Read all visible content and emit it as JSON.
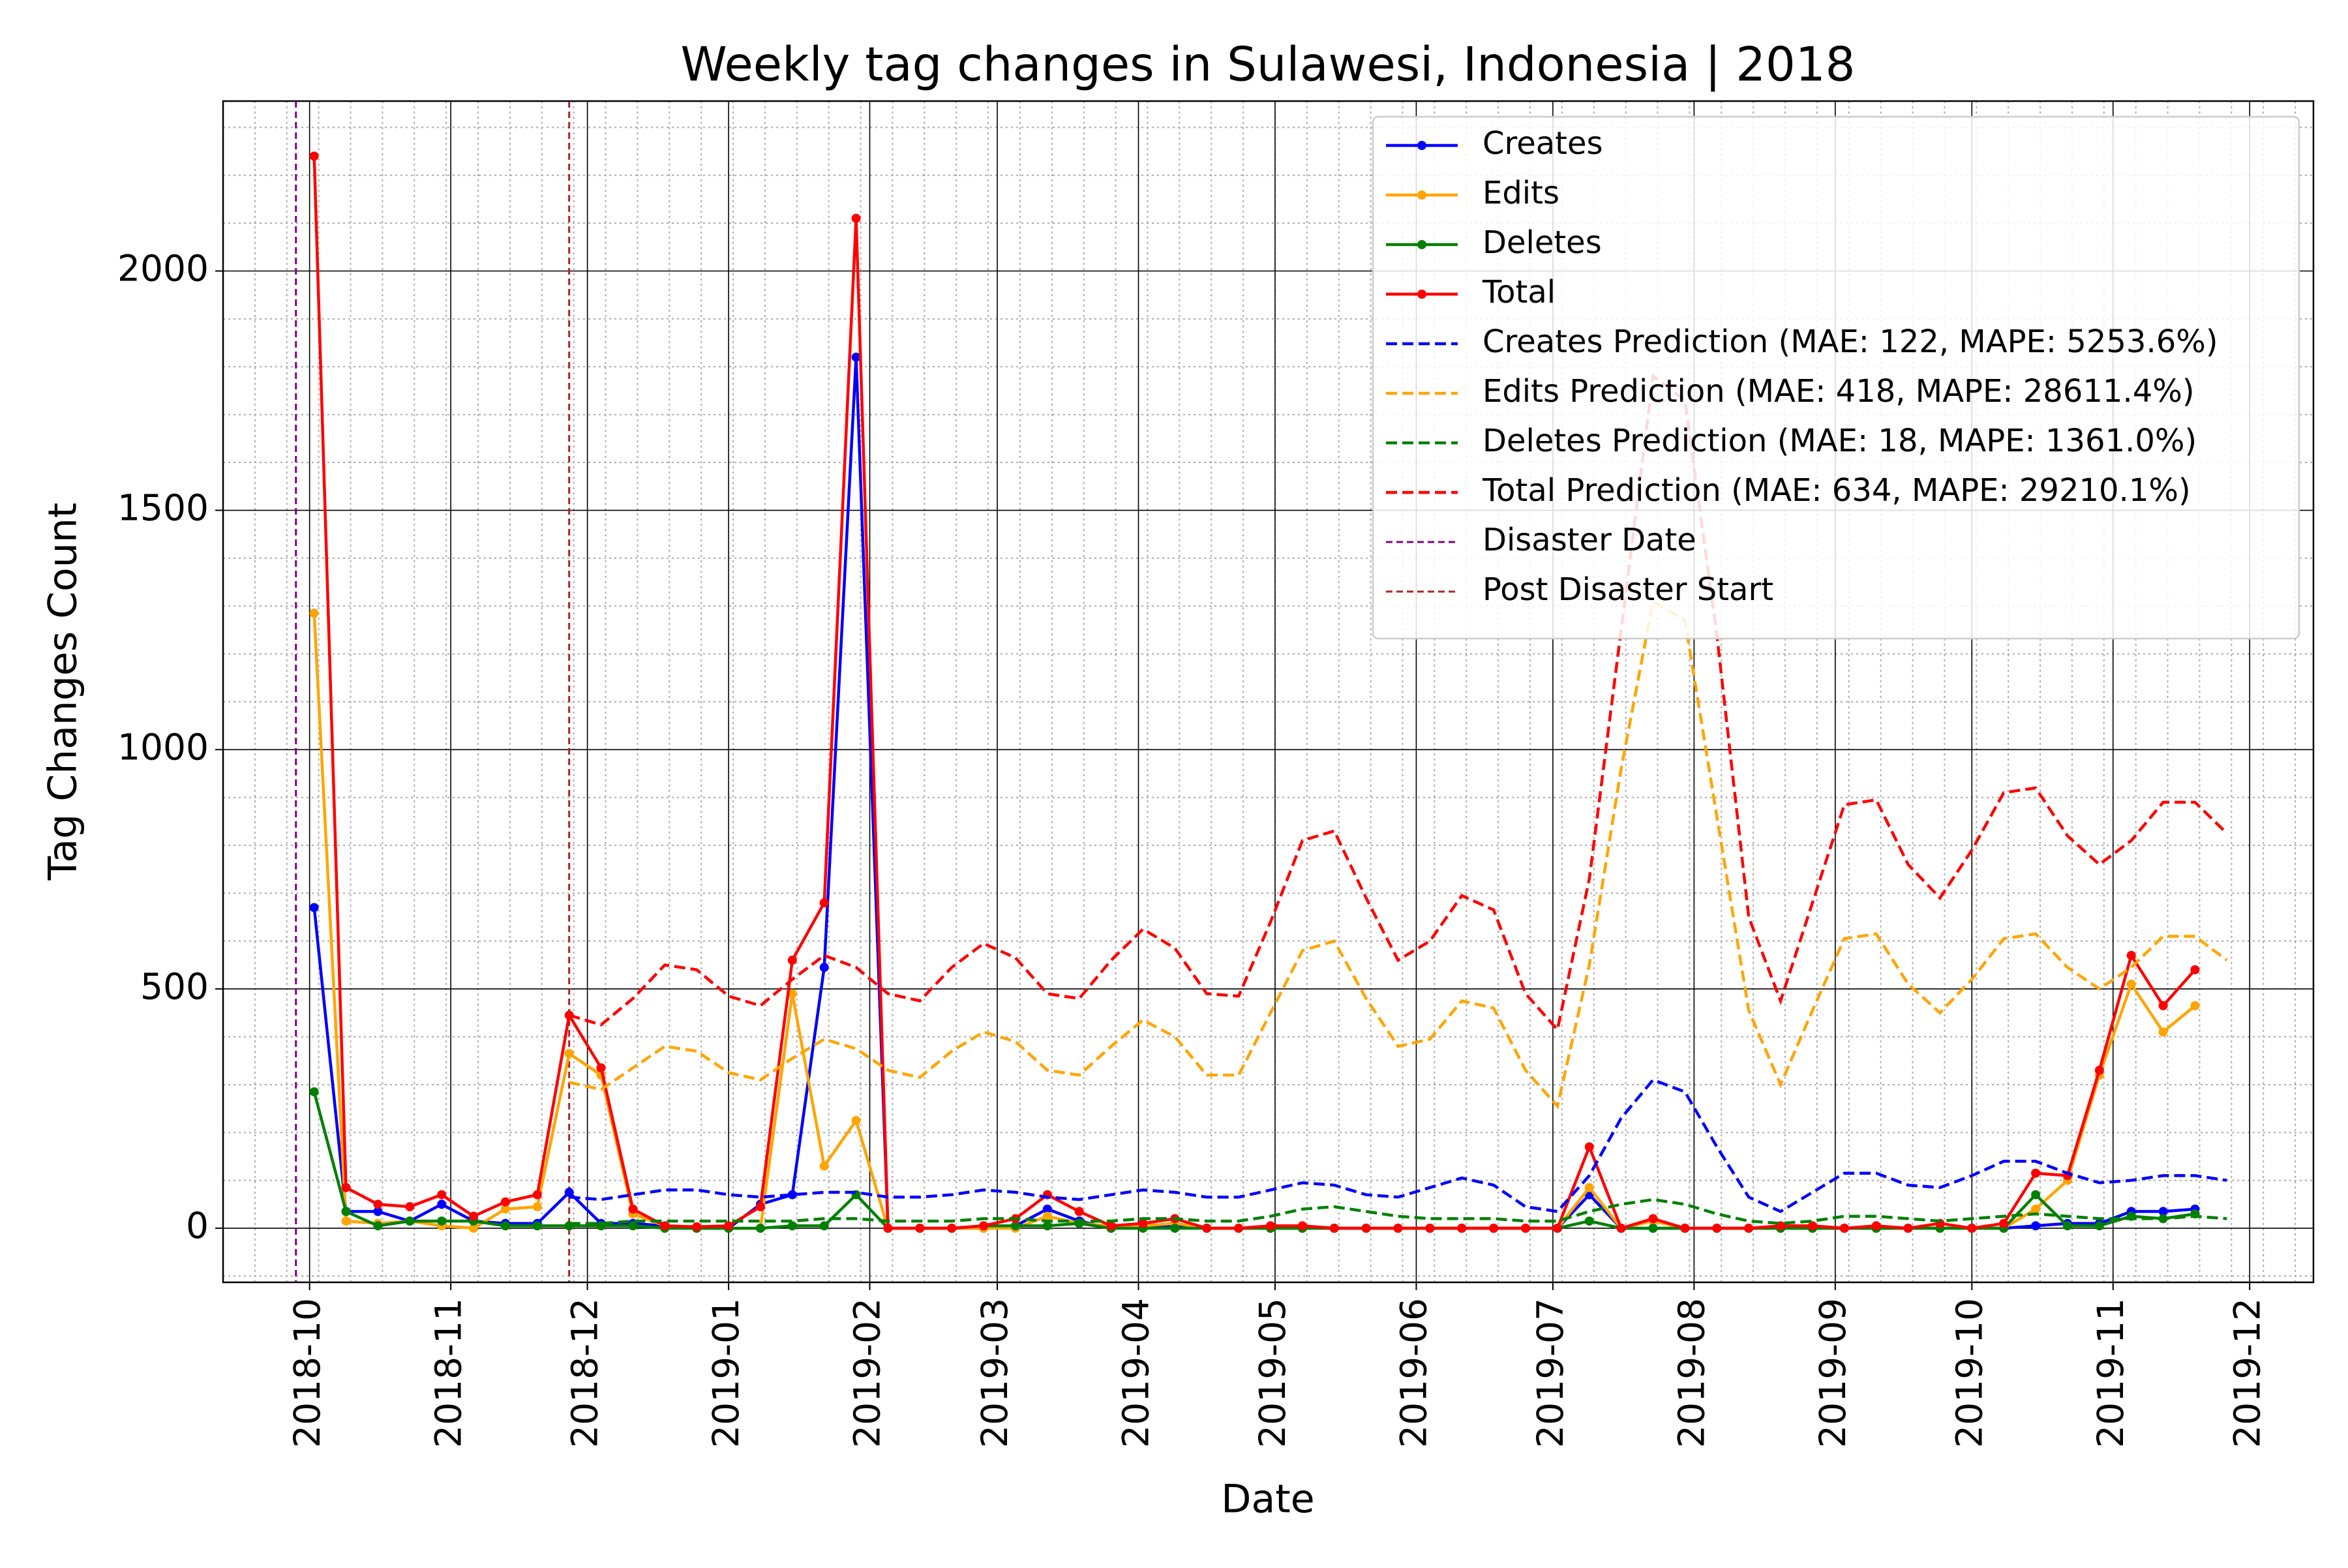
{
  "chart_data": {
    "type": "line",
    "title": "Weekly tag changes in Sulawesi, Indonesia | 2018",
    "x_label": "Date",
    "y_label": "Tag Changes Count",
    "x": [
      "2018-10-02",
      "2018-10-09",
      "2018-10-16",
      "2018-10-23",
      "2018-10-30",
      "2018-11-06",
      "2018-11-13",
      "2018-11-20",
      "2018-11-27",
      "2018-12-04",
      "2018-12-11",
      "2018-12-18",
      "2018-12-25",
      "2019-01-01",
      "2019-01-08",
      "2019-01-15",
      "2019-01-22",
      "2019-01-29",
      "2019-02-05",
      "2019-02-12",
      "2019-02-19",
      "2019-02-26",
      "2019-03-05",
      "2019-03-12",
      "2019-03-19",
      "2019-03-26",
      "2019-04-02",
      "2019-04-09",
      "2019-04-16",
      "2019-04-23",
      "2019-04-30",
      "2019-05-07",
      "2019-05-14",
      "2019-05-21",
      "2019-05-28",
      "2019-06-04",
      "2019-06-11",
      "2019-06-18",
      "2019-06-25",
      "2019-07-02",
      "2019-07-09",
      "2019-07-16",
      "2019-07-23",
      "2019-07-30",
      "2019-08-06",
      "2019-08-13",
      "2019-08-20",
      "2019-08-27",
      "2019-09-03",
      "2019-09-10",
      "2019-09-17",
      "2019-09-24",
      "2019-10-01",
      "2019-10-08",
      "2019-10-15",
      "2019-10-22",
      "2019-10-29",
      "2019-11-05",
      "2019-11-12",
      "2019-11-19",
      "2019-11-26"
    ],
    "series": [
      {
        "name": "Creates",
        "color": "#0000ff",
        "linestyle": "solid",
        "marker": true,
        "values": [
          670,
          35,
          35,
          15,
          50,
          15,
          10,
          10,
          75,
          10,
          10,
          5,
          0,
          0,
          50,
          70,
          545,
          1820,
          0,
          0,
          0,
          0,
          5,
          40,
          15,
          0,
          5,
          5,
          0,
          0,
          0,
          0,
          0,
          0,
          0,
          0,
          0,
          0,
          0,
          0,
          70,
          0,
          0,
          0,
          0,
          0,
          0,
          0,
          0,
          0,
          0,
          0,
          0,
          0,
          5,
          10,
          10,
          35,
          35,
          40,
          null
        ]
      },
      {
        "name": "Edits",
        "color": "#ffa500",
        "linestyle": "solid",
        "marker": true,
        "values": [
          1285,
          15,
          10,
          15,
          5,
          0,
          40,
          45,
          365,
          320,
          30,
          5,
          0,
          0,
          0,
          490,
          130,
          225,
          0,
          0,
          0,
          0,
          0,
          25,
          10,
          5,
          5,
          10,
          0,
          0,
          0,
          0,
          0,
          0,
          0,
          0,
          0,
          0,
          0,
          0,
          85,
          0,
          15,
          0,
          0,
          0,
          0,
          0,
          0,
          0,
          0,
          0,
          0,
          0,
          40,
          100,
          320,
          510,
          410,
          465,
          null
        ]
      },
      {
        "name": "Deletes",
        "color": "#008000",
        "linestyle": "solid",
        "marker": true,
        "values": [
          285,
          35,
          5,
          15,
          15,
          15,
          5,
          5,
          5,
          5,
          5,
          0,
          0,
          0,
          0,
          5,
          5,
          70,
          0,
          0,
          0,
          5,
          5,
          5,
          10,
          0,
          0,
          0,
          0,
          0,
          0,
          0,
          0,
          0,
          0,
          0,
          0,
          0,
          0,
          0,
          15,
          0,
          0,
          0,
          0,
          0,
          0,
          0,
          0,
          0,
          0,
          0,
          0,
          0,
          70,
          5,
          5,
          25,
          20,
          30,
          null
        ]
      },
      {
        "name": "Total",
        "color": "#ff0000",
        "linestyle": "solid",
        "marker": true,
        "values": [
          2240,
          85,
          50,
          45,
          70,
          25,
          55,
          70,
          445,
          335,
          40,
          5,
          3,
          5,
          45,
          560,
          680,
          2110,
          0,
          0,
          0,
          5,
          20,
          70,
          35,
          5,
          10,
          20,
          0,
          0,
          5,
          5,
          0,
          0,
          0,
          0,
          0,
          0,
          0,
          0,
          170,
          0,
          20,
          0,
          0,
          0,
          5,
          5,
          0,
          5,
          0,
          10,
          0,
          10,
          115,
          110,
          330,
          570,
          465,
          540,
          null
        ]
      },
      {
        "name": "Creates Prediction (MAE: 122, MAPE: 5253.6%)",
        "color": "#0000ff",
        "linestyle": "dashed",
        "marker": false,
        "values": [
          null,
          null,
          null,
          null,
          null,
          null,
          null,
          null,
          65,
          60,
          70,
          80,
          80,
          70,
          65,
          70,
          75,
          75,
          65,
          65,
          70,
          80,
          75,
          65,
          60,
          70,
          80,
          75,
          65,
          65,
          80,
          95,
          90,
          70,
          65,
          85,
          105,
          90,
          45,
          35,
          110,
          230,
          310,
          285,
          170,
          65,
          35,
          75,
          115,
          115,
          90,
          85,
          110,
          140,
          140,
          115,
          95,
          100,
          110,
          110,
          100
        ]
      },
      {
        "name": "Edits Prediction (MAE: 418, MAPE: 28611.4%)",
        "color": "#ffa500",
        "linestyle": "dashed",
        "marker": false,
        "values": [
          null,
          null,
          null,
          null,
          null,
          null,
          null,
          null,
          305,
          290,
          335,
          380,
          370,
          325,
          310,
          355,
          395,
          375,
          330,
          315,
          370,
          410,
          390,
          330,
          320,
          380,
          435,
          400,
          320,
          320,
          450,
          580,
          600,
          480,
          380,
          395,
          475,
          460,
          330,
          255,
          550,
          960,
          1310,
          1270,
          860,
          455,
          300,
          455,
          605,
          615,
          510,
          450,
          520,
          605,
          615,
          545,
          500,
          545,
          610,
          610,
          560
        ]
      },
      {
        "name": "Deletes Prediction (MAE: 18, MAPE: 1361.0%)",
        "color": "#008000",
        "linestyle": "dashed",
        "marker": false,
        "values": [
          null,
          null,
          null,
          null,
          null,
          null,
          null,
          null,
          10,
          10,
          15,
          15,
          15,
          15,
          15,
          15,
          20,
          20,
          15,
          15,
          15,
          20,
          20,
          15,
          15,
          15,
          20,
          20,
          15,
          15,
          25,
          40,
          45,
          35,
          25,
          20,
          20,
          20,
          15,
          15,
          35,
          50,
          60,
          50,
          30,
          15,
          10,
          15,
          25,
          25,
          20,
          15,
          20,
          25,
          30,
          25,
          20,
          20,
          20,
          25,
          20
        ]
      },
      {
        "name": "Total Prediction (MAE: 634, MAPE: 29210.1%)",
        "color": "#ff0000",
        "linestyle": "dashed",
        "marker": false,
        "values": [
          null,
          null,
          null,
          null,
          null,
          null,
          null,
          null,
          445,
          425,
          480,
          550,
          540,
          485,
          465,
          520,
          570,
          545,
          490,
          475,
          545,
          595,
          565,
          490,
          480,
          560,
          625,
          585,
          490,
          485,
          640,
          810,
          830,
          690,
          560,
          600,
          695,
          665,
          490,
          415,
          730,
          1250,
          1780,
          1730,
          1240,
          650,
          475,
          680,
          885,
          895,
          760,
          690,
          790,
          910,
          920,
          820,
          760,
          810,
          890,
          890,
          825
        ]
      }
    ],
    "vlines": [
      {
        "name": "Disaster Date",
        "color": "#800080",
        "x": "2018-09-28"
      },
      {
        "name": "Post Disaster Start",
        "color": "#b22222",
        "x": "2018-11-27"
      }
    ],
    "xlim": [
      "2018-09-12",
      "2019-12-15"
    ],
    "ylim": [
      -113,
      2355
    ],
    "yticks": [
      0,
      500,
      1000,
      1500,
      2000
    ],
    "xticks": [
      {
        "value": "2018-10-01",
        "label": "2018-10"
      },
      {
        "value": "2018-11-01",
        "label": "2018-11"
      },
      {
        "value": "2018-12-01",
        "label": "2018-12"
      },
      {
        "value": "2019-01-01",
        "label": "2019-01"
      },
      {
        "value": "2019-02-01",
        "label": "2019-02"
      },
      {
        "value": "2019-03-01",
        "label": "2019-03"
      },
      {
        "value": "2019-04-01",
        "label": "2019-04"
      },
      {
        "value": "2019-05-01",
        "label": "2019-05"
      },
      {
        "value": "2019-06-01",
        "label": "2019-06"
      },
      {
        "value": "2019-07-01",
        "label": "2019-07"
      },
      {
        "value": "2019-08-01",
        "label": "2019-08"
      },
      {
        "value": "2019-09-01",
        "label": "2019-09"
      },
      {
        "value": "2019-10-01",
        "label": "2019-10"
      },
      {
        "value": "2019-11-01",
        "label": "2019-11"
      },
      {
        "value": "2019-12-01",
        "label": "2019-12"
      }
    ],
    "grid": true,
    "minor_grid": true,
    "legend": "upper right"
  }
}
